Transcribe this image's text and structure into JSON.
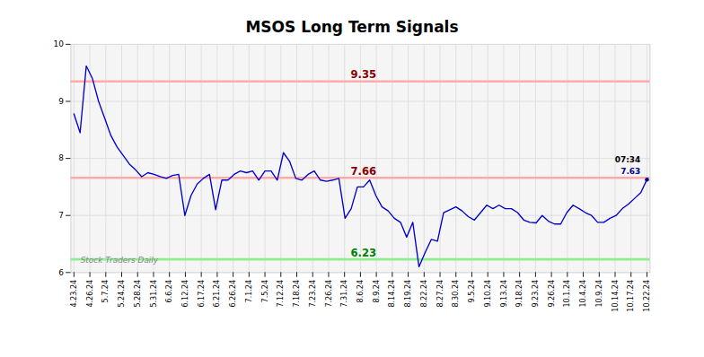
{
  "chart_data": {
    "type": "line",
    "title": "MSOS Long Term Signals",
    "color": "#0000cc",
    "values": [
      8.78,
      8.45,
      9.62,
      9.4,
      9.0,
      8.7,
      8.4,
      8.2,
      8.05,
      7.9,
      7.8,
      7.68,
      7.75,
      7.72,
      7.68,
      7.65,
      7.7,
      7.72,
      7.0,
      7.35,
      7.55,
      7.65,
      7.72,
      7.1,
      7.62,
      7.62,
      7.72,
      7.78,
      7.75,
      7.78,
      7.62,
      7.78,
      7.78,
      7.62,
      8.1,
      7.95,
      7.65,
      7.62,
      7.72,
      7.78,
      7.62,
      7.6,
      7.62,
      7.65,
      6.95,
      7.12,
      7.5,
      7.5,
      7.62,
      7.35,
      7.15,
      7.08,
      6.95,
      6.88,
      6.62,
      6.88,
      6.1,
      6.35,
      6.58,
      6.55,
      7.05,
      7.1,
      7.15,
      7.08,
      6.98,
      6.92,
      7.05,
      7.18,
      7.12,
      7.18,
      7.12,
      7.12,
      7.05,
      6.92,
      6.88,
      6.87,
      7.0,
      6.9,
      6.85,
      6.85,
      7.05,
      7.18,
      7.12,
      7.05,
      7.0,
      6.88,
      6.88,
      6.95,
      7.0,
      7.12,
      7.2,
      7.3,
      7.4,
      7.63
    ],
    "xlim": [
      -0.5,
      93.5
    ],
    "xticks": [
      {
        "value": 0,
        "label": "4.23.24"
      },
      {
        "value": 2.5833333333,
        "label": "4.26.24"
      },
      {
        "value": 5.1666666667,
        "label": "5.7.24"
      },
      {
        "value": 7.75,
        "label": "5.24.24"
      },
      {
        "value": 10.3333333333,
        "label": "5.28.24"
      },
      {
        "value": 12.9166666667,
        "label": "5.31.24"
      },
      {
        "value": 15.5,
        "label": "6.6.24"
      },
      {
        "value": 18.0833333333,
        "label": "6.12.24"
      },
      {
        "value": 20.6666666667,
        "label": "6.17.24"
      },
      {
        "value": 23.25,
        "label": "6.21.24"
      },
      {
        "value": 25.8333333333,
        "label": "6.26.24"
      },
      {
        "value": 28.4166666667,
        "label": "7.1.24"
      },
      {
        "value": 31,
        "label": "7.5.24"
      },
      {
        "value": 33.5833333333,
        "label": "7.12.24"
      },
      {
        "value": 36.1666666667,
        "label": "7.18.24"
      },
      {
        "value": 38.75,
        "label": "7.23.24"
      },
      {
        "value": 41.3333333333,
        "label": "7.26.24"
      },
      {
        "value": 43.9166666667,
        "label": "7.31.24"
      },
      {
        "value": 46.5,
        "label": "8.6.24"
      },
      {
        "value": 49.0833333333,
        "label": "8.9.24"
      },
      {
        "value": 51.6666666667,
        "label": "8.14.24"
      },
      {
        "value": 54.25,
        "label": "8.19.24"
      },
      {
        "value": 56.8333333333,
        "label": "8.22.24"
      },
      {
        "value": 59.4166666667,
        "label": "8.27.24"
      },
      {
        "value": 62,
        "label": "8.30.24"
      },
      {
        "value": 64.5833333333,
        "label": "9.5.24"
      },
      {
        "value": 67.1666666667,
        "label": "9.10.24"
      },
      {
        "value": 69.75,
        "label": "9.13.24"
      },
      {
        "value": 72.3333333333,
        "label": "9.18.24"
      },
      {
        "value": 74.9166666667,
        "label": "9.23.24"
      },
      {
        "value": 77.5,
        "label": "9.26.24"
      },
      {
        "value": 80.0833333333,
        "label": "10.1.24"
      },
      {
        "value": 82.6666666667,
        "label": "10.4.24"
      },
      {
        "value": 85.25,
        "label": "10.9.24"
      },
      {
        "value": 87.8333333333,
        "label": "10.14.24"
      },
      {
        "value": 90.4166666667,
        "label": "10.17.24"
      },
      {
        "value": 93,
        "label": "10.22.24"
      }
    ],
    "ylim": [
      6.0,
      10.0
    ],
    "yticks": [
      6,
      7,
      8,
      9,
      10
    ],
    "grid": true,
    "hlines": [
      {
        "value": 9.35,
        "color": "#ffaaaa",
        "label": "9.35",
        "label_color": "#8b0000"
      },
      {
        "value": 7.66,
        "color": "#ffaaaa",
        "label": "7.66",
        "label_color": "#8b0000"
      },
      {
        "value": 6.23,
        "color": "#90ee90",
        "label": "6.23",
        "label_color": "#008000"
      }
    ],
    "annotations": [
      {
        "text": "07:34",
        "color": "#000000"
      },
      {
        "text": "7.63",
        "color": "#00008b"
      }
    ],
    "watermark": {
      "text": "Stock Traders Daily",
      "color": "#888888"
    }
  }
}
